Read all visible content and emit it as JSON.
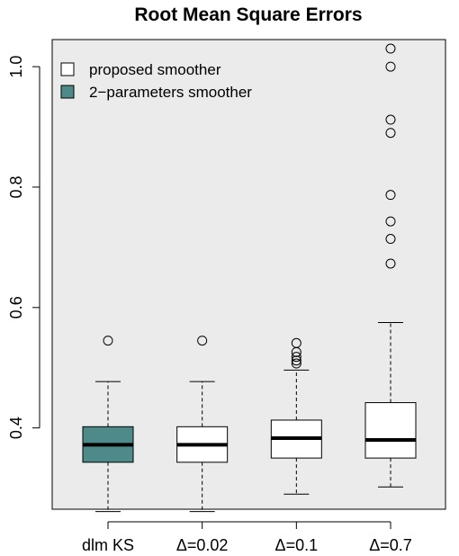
{
  "chart_data": {
    "type": "boxplot",
    "title": "Root Mean Square Errors",
    "xlabel": "",
    "ylabel": "",
    "categories": [
      "dlm KS",
      "Δ=0.02",
      "Δ=0.1",
      "Δ=0.7"
    ],
    "ylim": [
      0.265,
      1.045
    ],
    "yticks": [
      0.4,
      0.6,
      0.8,
      1.0
    ],
    "ytick_labels": [
      "0.4",
      "0.6",
      "0.8",
      "1.0"
    ],
    "grid": false,
    "legend_position": "top-left",
    "legend": [
      {
        "label": "proposed smoother",
        "color": "#ffffff"
      },
      {
        "label": "2−parameters smoother",
        "color": "#4f8a8b"
      }
    ],
    "colors": {
      "panel_background": "#ebebeb",
      "proposed": "#ffffff",
      "two_param": "#4f8a8b"
    },
    "series": [
      {
        "category": "dlm KS",
        "group": "2−parameters smoother",
        "whisker_low": 0.261,
        "q1": 0.343,
        "median": 0.372,
        "q3": 0.402,
        "whisker_high": 0.477,
        "outliers": [
          0.545
        ]
      },
      {
        "category": "Δ=0.02",
        "group": "proposed smoother",
        "whisker_low": 0.261,
        "q1": 0.343,
        "median": 0.372,
        "q3": 0.402,
        "whisker_high": 0.477,
        "outliers": [
          0.545
        ]
      },
      {
        "category": "Δ=0.1",
        "group": "proposed smoother",
        "whisker_low": 0.29,
        "q1": 0.35,
        "median": 0.383,
        "q3": 0.413,
        "whisker_high": 0.496,
        "outliers": [
          0.507,
          0.512,
          0.518,
          0.526,
          0.541
        ]
      },
      {
        "category": "Δ=0.7",
        "group": "proposed smoother",
        "whisker_low": 0.302,
        "q1": 0.35,
        "median": 0.38,
        "q3": 0.442,
        "whisker_high": 0.575,
        "outliers": [
          0.673,
          0.714,
          0.743,
          0.787,
          0.89,
          0.912,
          1.0,
          1.03
        ]
      }
    ]
  }
}
